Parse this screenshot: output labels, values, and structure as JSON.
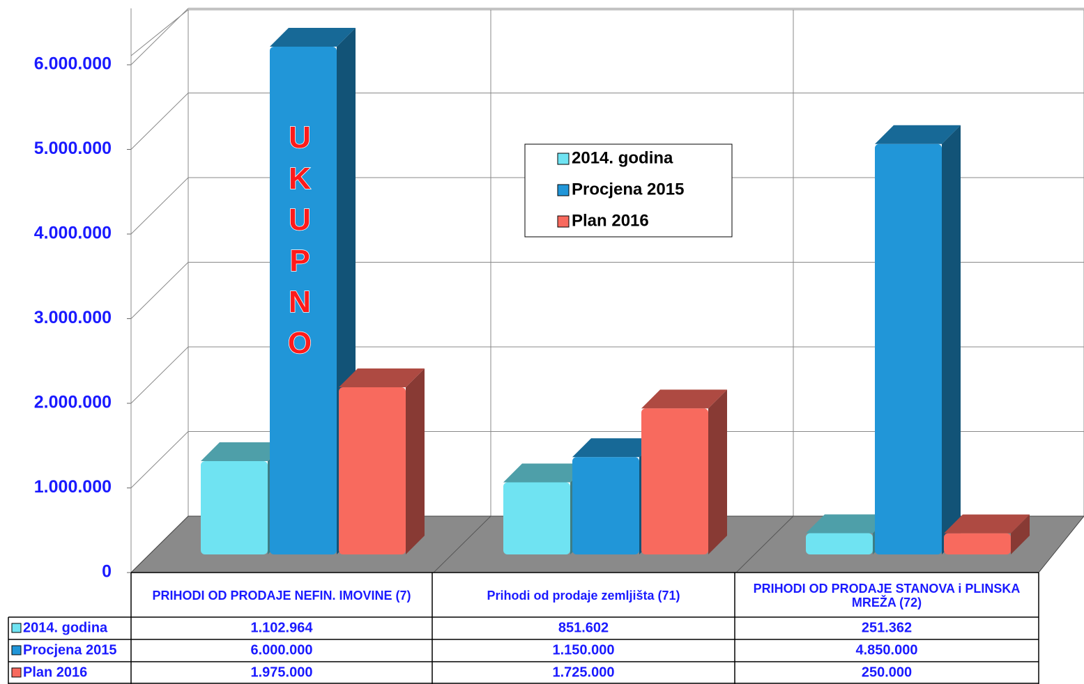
{
  "chart_data": {
    "type": "bar3d",
    "categories": [
      "PRIHODI OD PRODAJE NEFIN. IMOVINE (7)",
      "Prihodi od prodaje zemljišta (71)",
      "PRIHODI OD PRODAJE STANOVA i PLINSKA MREŽA (72)"
    ],
    "series": [
      {
        "name": "2014. godina",
        "color": "#6fe3f2",
        "values": [
          1102964,
          851602,
          251362
        ],
        "value_labels": [
          "1.102.964",
          "851.602",
          "251.362"
        ]
      },
      {
        "name": "Procjena 2015",
        "color": "#2196d8",
        "values": [
          6000000,
          1150000,
          4850000
        ],
        "value_labels": [
          "6.000.000",
          "1.150.000",
          "4.850.000"
        ]
      },
      {
        "name": "Plan 2016",
        "color": "#f86a5e",
        "values": [
          1975000,
          1725000,
          250000
        ],
        "value_labels": [
          "1.975.000",
          "1.725.000",
          "250.000"
        ]
      }
    ],
    "annotation": "UKUPNO",
    "ylim": [
      0,
      6000000
    ],
    "yticks": [
      0,
      {
        "value": 1000000,
        "label": "1.000.000"
      },
      {
        "value": 2000000,
        "label": "2.000.000"
      },
      {
        "value": 3000000,
        "label": "3.000.000"
      },
      {
        "value": 4000000,
        "label": "4.000.000"
      },
      {
        "value": 5000000,
        "label": "5.000.000"
      },
      {
        "value": 6000000,
        "label": "6.000.000"
      }
    ],
    "grid": true
  }
}
